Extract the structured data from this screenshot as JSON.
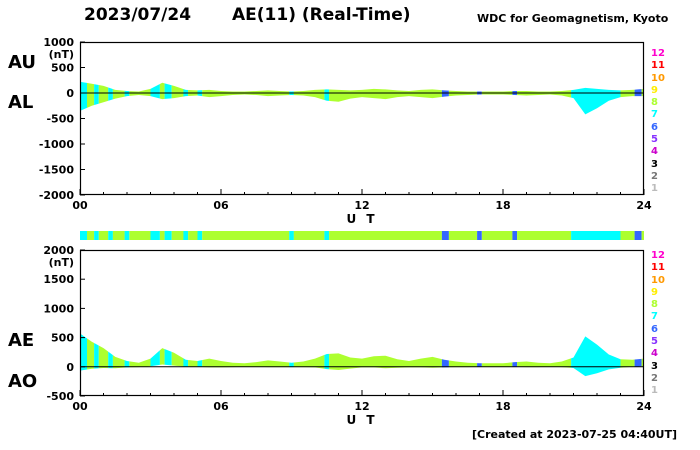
{
  "header": {
    "date": "2023/07/24",
    "title": "AE(11) (Real-Time)",
    "source": "WDC for Geomagnetism, Kyoto"
  },
  "footer": {
    "created": "[Created at 2023-07-25 04:40UT]"
  },
  "legend": {
    "items": [
      {
        "label": "12",
        "color": "#FF00CC"
      },
      {
        "label": "11",
        "color": "#FF0000"
      },
      {
        "label": "10",
        "color": "#FF9900"
      },
      {
        "label": "9",
        "color": "#FFEE00"
      },
      {
        "label": "8",
        "color": "#ADFF2F"
      },
      {
        "label": "7",
        "color": "#00FFFF"
      },
      {
        "label": "6",
        "color": "#3366FF"
      },
      {
        "label": "5",
        "color": "#8833FF"
      },
      {
        "label": "4",
        "color": "#CC00CC"
      },
      {
        "label": "3",
        "color": "#000000"
      },
      {
        "label": "2",
        "color": "#777777"
      },
      {
        "label": "1",
        "color": "#BBBBBB"
      }
    ]
  },
  "chart_data": [
    {
      "type": "area",
      "panel": "AU/AL",
      "unit": "(nT)",
      "ylim": [
        -2000,
        1000
      ],
      "yticks": [
        1000,
        500,
        0,
        -500,
        -1000,
        -1500,
        -2000
      ],
      "xlim": [
        0,
        24
      ],
      "xticks": [
        0,
        6,
        12,
        18,
        24
      ],
      "xtick_labels": [
        "00",
        "06",
        "12",
        "18",
        "24"
      ],
      "xlabel": "U T",
      "x_start": 0,
      "x_step": 0.5,
      "series": [
        {
          "name": "AU",
          "values": [
            220,
            180,
            140,
            60,
            40,
            30,
            80,
            200,
            140,
            60,
            50,
            60,
            40,
            30,
            30,
            40,
            50,
            40,
            30,
            40,
            60,
            70,
            60,
            50,
            60,
            80,
            70,
            50,
            40,
            60,
            70,
            50,
            40,
            30,
            30,
            30,
            30,
            40,
            40,
            30,
            30,
            40,
            60,
            100,
            80,
            60,
            50,
            60,
            80
          ]
        },
        {
          "name": "AL",
          "values": [
            -350,
            -250,
            -180,
            -110,
            -60,
            -40,
            -60,
            -120,
            -100,
            -60,
            -50,
            -80,
            -60,
            -40,
            -30,
            -40,
            -60,
            -50,
            -40,
            -50,
            -80,
            -150,
            -170,
            -110,
            -80,
            -100,
            -120,
            -80,
            -60,
            -80,
            -100,
            -70,
            -50,
            -40,
            -30,
            -30,
            -30,
            -40,
            -50,
            -40,
            -30,
            -50,
            -100,
            -420,
            -300,
            -150,
            -80,
            -60,
            -60
          ]
        }
      ]
    },
    {
      "type": "area",
      "panel": "AE/AO",
      "unit": "(nT)",
      "ylim": [
        -500,
        2000
      ],
      "yticks": [
        2000,
        1500,
        1000,
        500,
        0,
        -500
      ],
      "xlim": [
        0,
        24
      ],
      "xticks": [
        0,
        6,
        12,
        18,
        24
      ],
      "xtick_labels": [
        "00",
        "06",
        "12",
        "18",
        "24"
      ],
      "xlabel": "U T",
      "x_start": 0,
      "x_step": 0.5,
      "series": [
        {
          "name": "AE",
          "values": [
            570,
            430,
            320,
            170,
            100,
            70,
            140,
            320,
            240,
            120,
            100,
            140,
            100,
            70,
            60,
            80,
            110,
            90,
            70,
            90,
            140,
            220,
            230,
            160,
            140,
            180,
            190,
            130,
            100,
            140,
            170,
            120,
            90,
            70,
            60,
            60,
            60,
            80,
            90,
            70,
            60,
            90,
            160,
            520,
            380,
            210,
            130,
            120,
            140
          ]
        },
        {
          "name": "AO",
          "values": [
            -65,
            -35,
            -20,
            -25,
            -10,
            -5,
            10,
            40,
            20,
            0,
            0,
            -10,
            -10,
            -5,
            0,
            0,
            -5,
            -5,
            -5,
            -5,
            -10,
            -40,
            -55,
            -30,
            -10,
            -10,
            -25,
            -15,
            -10,
            -10,
            -15,
            -10,
            -5,
            -5,
            0,
            0,
            0,
            0,
            -5,
            -5,
            0,
            -5,
            -20,
            -160,
            -110,
            -45,
            -15,
            0,
            10
          ]
        }
      ]
    },
    {
      "type": "heatmap",
      "panel": "station-count-bar",
      "segments": [
        {
          "start": 0.0,
          "end": 0.3,
          "count": 7
        },
        {
          "start": 0.3,
          "end": 0.6,
          "count": 8
        },
        {
          "start": 0.6,
          "end": 0.8,
          "count": 7
        },
        {
          "start": 0.8,
          "end": 1.2,
          "count": 8
        },
        {
          "start": 1.2,
          "end": 1.4,
          "count": 7
        },
        {
          "start": 1.4,
          "end": 1.9,
          "count": 8
        },
        {
          "start": 1.9,
          "end": 2.1,
          "count": 7
        },
        {
          "start": 2.1,
          "end": 3.0,
          "count": 8
        },
        {
          "start": 3.0,
          "end": 3.4,
          "count": 7
        },
        {
          "start": 3.4,
          "end": 3.6,
          "count": 8
        },
        {
          "start": 3.6,
          "end": 3.9,
          "count": 7
        },
        {
          "start": 3.9,
          "end": 4.4,
          "count": 8
        },
        {
          "start": 4.4,
          "end": 4.6,
          "count": 7
        },
        {
          "start": 4.6,
          "end": 5.0,
          "count": 8
        },
        {
          "start": 5.0,
          "end": 5.2,
          "count": 7
        },
        {
          "start": 5.2,
          "end": 8.9,
          "count": 8
        },
        {
          "start": 8.9,
          "end": 9.1,
          "count": 7
        },
        {
          "start": 9.1,
          "end": 10.4,
          "count": 8
        },
        {
          "start": 10.4,
          "end": 10.6,
          "count": 7
        },
        {
          "start": 10.6,
          "end": 15.4,
          "count": 8
        },
        {
          "start": 15.4,
          "end": 15.7,
          "count": 6
        },
        {
          "start": 15.7,
          "end": 16.9,
          "count": 8
        },
        {
          "start": 16.9,
          "end": 17.1,
          "count": 6
        },
        {
          "start": 17.1,
          "end": 18.4,
          "count": 8
        },
        {
          "start": 18.4,
          "end": 18.6,
          "count": 6
        },
        {
          "start": 18.6,
          "end": 20.9,
          "count": 8
        },
        {
          "start": 20.9,
          "end": 23.0,
          "count": 7
        },
        {
          "start": 23.0,
          "end": 23.6,
          "count": 8
        },
        {
          "start": 23.6,
          "end": 23.9,
          "count": 6
        },
        {
          "start": 23.9,
          "end": 24.0,
          "count": 8
        }
      ]
    }
  ]
}
